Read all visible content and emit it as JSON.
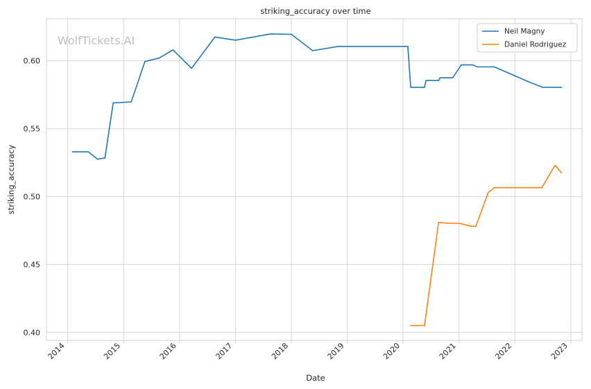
{
  "chart_data": {
    "type": "line",
    "title": "striking_accuracy over time",
    "xlabel": "Date",
    "ylabel": "striking_accuracy",
    "watermark": "WolfTickets.AI",
    "xlim": [
      "2013-08-15",
      "2023-03-15"
    ],
    "ylim": [
      0.394,
      0.631
    ],
    "x_ticks": [
      "2014",
      "2015",
      "2016",
      "2017",
      "2018",
      "2019",
      "2020",
      "2021",
      "2022",
      "2023"
    ],
    "y_ticks": [
      "0.40",
      "0.45",
      "0.50",
      "0.55",
      "0.60"
    ],
    "grid": true,
    "legend_position": "top-right",
    "series": [
      {
        "name": "Neil Magny",
        "color": "#1f77b4",
        "points": [
          [
            "2014-02-01",
            0.533
          ],
          [
            "2014-05-15",
            0.533
          ],
          [
            "2014-07-15",
            0.5275
          ],
          [
            "2014-09-01",
            0.5285
          ],
          [
            "2014-10-25",
            0.569
          ],
          [
            "2015-02-20",
            0.5697
          ],
          [
            "2015-05-20",
            0.5995
          ],
          [
            "2015-08-20",
            0.602
          ],
          [
            "2015-11-20",
            0.608
          ],
          [
            "2016-03-20",
            0.5945
          ],
          [
            "2016-08-20",
            0.6175
          ],
          [
            "2017-01-01",
            0.6152
          ],
          [
            "2017-08-20",
            0.6198
          ],
          [
            "2018-01-01",
            0.6195
          ],
          [
            "2018-05-20",
            0.6075
          ],
          [
            "2018-11-01",
            0.6105
          ],
          [
            "2020-02-01",
            0.6105
          ],
          [
            "2020-02-20",
            0.5805
          ],
          [
            "2020-05-20",
            0.5805
          ],
          [
            "2020-05-30",
            0.5855
          ],
          [
            "2020-08-20",
            0.5855
          ],
          [
            "2020-08-30",
            0.5875
          ],
          [
            "2020-11-20",
            0.5875
          ],
          [
            "2021-01-15",
            0.597
          ],
          [
            "2021-04-01",
            0.597
          ],
          [
            "2021-05-01",
            0.5955
          ],
          [
            "2021-08-20",
            0.5955
          ],
          [
            "2022-04-01",
            0.5845
          ],
          [
            "2022-07-01",
            0.5805
          ],
          [
            "2022-11-01",
            0.5805
          ]
        ]
      },
      {
        "name": "Daniel Rodriguez",
        "color": "#ff7f0e",
        "points": [
          [
            "2020-02-20",
            0.405
          ],
          [
            "2020-05-20",
            0.405
          ],
          [
            "2020-08-20",
            0.481
          ],
          [
            "2020-10-20",
            0.4803
          ],
          [
            "2021-01-01",
            0.4803
          ],
          [
            "2021-03-20",
            0.4782
          ],
          [
            "2021-04-20",
            0.478
          ],
          [
            "2021-07-10",
            0.503
          ],
          [
            "2021-08-20",
            0.5065
          ],
          [
            "2022-06-25",
            0.5065
          ],
          [
            "2022-09-20",
            0.523
          ],
          [
            "2022-11-01",
            0.5175
          ]
        ]
      }
    ]
  }
}
